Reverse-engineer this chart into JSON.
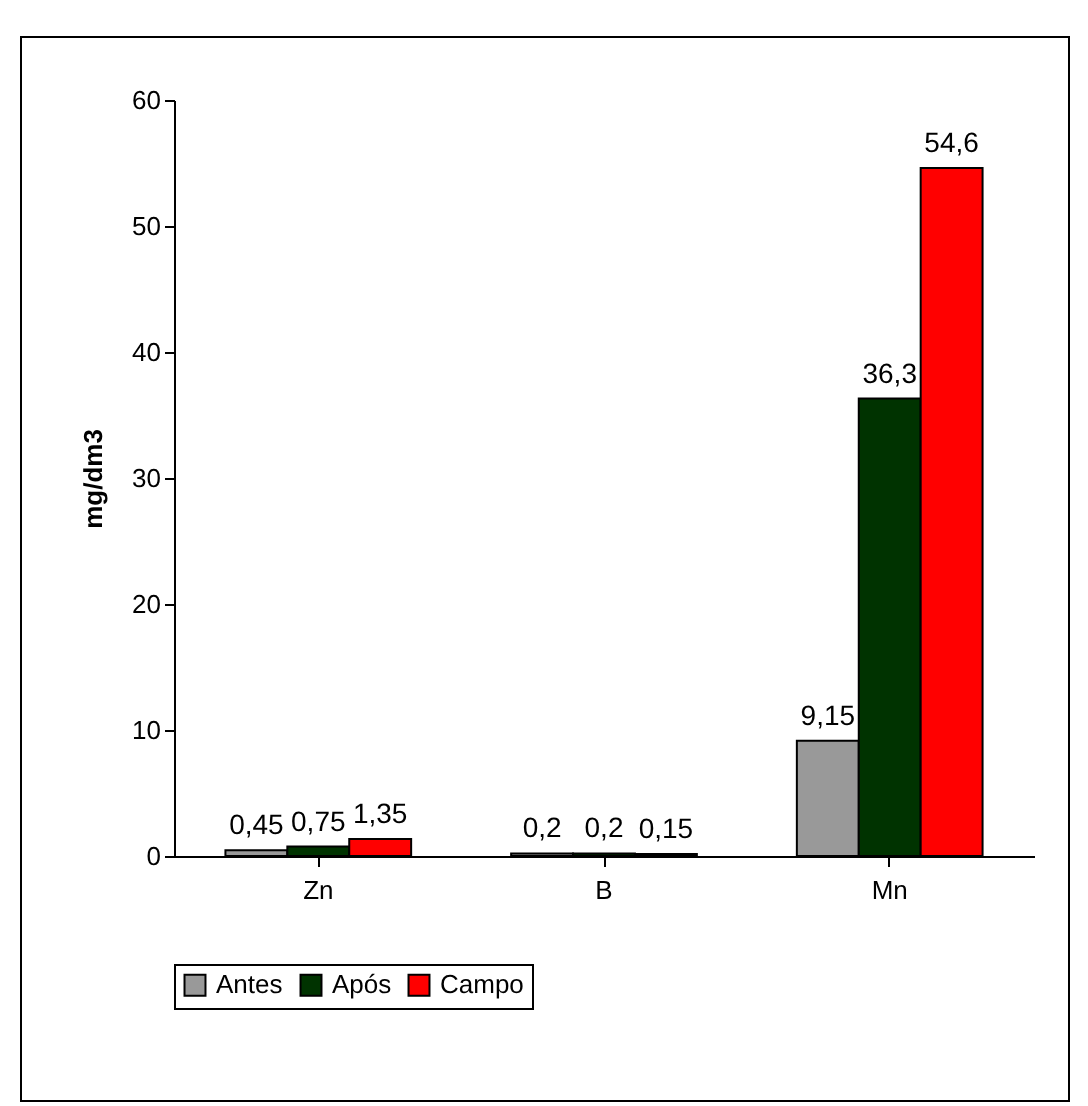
{
  "chart_data": {
    "type": "bar",
    "ylabel": "mg/dm3",
    "categories": [
      "Zn",
      "B",
      "Mn"
    ],
    "series": [
      {
        "name": "Antes",
        "color": "#999999",
        "values": [
          0.45,
          0.2,
          9.15
        ],
        "value_labels": [
          "0,45",
          "0,2",
          "9,15"
        ]
      },
      {
        "name": "Após",
        "color": "#003300",
        "values": [
          0.75,
          0.2,
          36.3
        ],
        "value_labels": [
          "0,75",
          "0,2",
          "36,3"
        ]
      },
      {
        "name": "Campo",
        "color": "#ff0000",
        "values": [
          1.35,
          0.15,
          54.6
        ],
        "value_labels": [
          "1,35",
          "0,15",
          "54,6"
        ]
      }
    ],
    "ylim": [
      0,
      60
    ],
    "yticks": [
      0,
      10,
      20,
      30,
      40,
      50,
      60
    ],
    "grid": false,
    "legend": "bottom"
  }
}
